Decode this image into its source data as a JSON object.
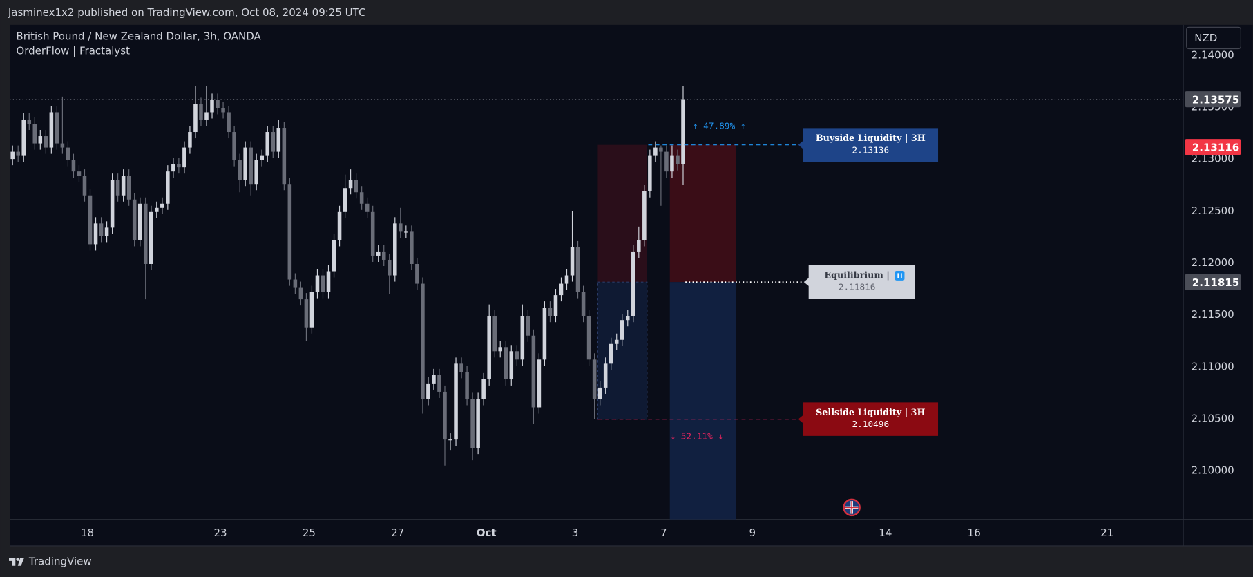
{
  "header": {
    "published": "Jasminex1x2 published on TradingView.com, Oct 08, 2024 09:25 UTC"
  },
  "footer": {
    "brand": "TradingView"
  },
  "chart_data": {
    "type": "candlestick",
    "title": "British Pound / New Zealand Dollar, 3h, OANDA",
    "subtitle": "OrderFlow | Fractalyst",
    "currency": "NZD",
    "up_color": "#d1d4dc",
    "down_color": "#6a6d78",
    "grid": false,
    "xlim": [
      0,
      211.75
    ],
    "xticks": [
      {
        "value": 14,
        "label": "18"
      },
      {
        "value": 38,
        "label": "23"
      },
      {
        "value": 54,
        "label": "25"
      },
      {
        "value": 70,
        "label": "27"
      },
      {
        "value": 86,
        "label": "Oct"
      },
      {
        "value": 102,
        "label": "3"
      },
      {
        "value": 118,
        "label": "7"
      },
      {
        "value": 134,
        "label": "9"
      },
      {
        "value": 158,
        "label": "14"
      },
      {
        "value": 174,
        "label": "16"
      },
      {
        "value": 198,
        "label": "21"
      }
    ],
    "ylim": [
      2.09531,
      2.14292
    ],
    "yticks": [
      {
        "value": 2.14,
        "label": "2.14000"
      },
      {
        "value": 2.135,
        "label": "2.13500"
      },
      {
        "value": 2.13,
        "label": "2.13000"
      },
      {
        "value": 2.125,
        "label": "2.12500"
      },
      {
        "value": 2.12,
        "label": "2.12000"
      },
      {
        "value": 2.115,
        "label": "2.11500"
      },
      {
        "value": 2.11,
        "label": "2.11000"
      },
      {
        "value": 2.105,
        "label": "2.10500"
      },
      {
        "value": 2.1,
        "label": "2.10000"
      }
    ],
    "open": [
      2.13,
      2.1307,
      2.1303,
      2.1338,
      2.1334,
      2.1315,
      2.1322,
      2.1311,
      2.1345,
      2.1315,
      2.1311,
      2.1299,
      2.1288,
      2.1284,
      2.1265,
      2.1218,
      2.1238,
      2.1226,
      2.1234,
      2.128,
      2.1265,
      2.1284,
      2.1261,
      2.1222,
      2.1257,
      2.1199,
      2.1249,
      2.1253,
      2.1257,
      2.1288,
      2.1295,
      2.1292,
      2.1311,
      2.1326,
      2.1353,
      2.1338,
      2.1345,
      2.1357,
      2.1349,
      2.1345,
      2.1326,
      2.1299,
      2.128,
      2.1311,
      2.1276,
      2.1299,
      2.1303,
      2.1326,
      2.1307,
      2.133,
      2.1276,
      2.1184,
      2.1176,
      2.1165,
      2.1138,
      2.1172,
      2.1188,
      2.1172,
      2.1192,
      2.1222,
      2.1249,
      2.1272,
      2.128,
      2.1268,
      2.1257,
      2.1249,
      2.1207,
      2.1211,
      2.1203,
      2.1188,
      2.1238,
      2.123,
      2.123,
      2.1199,
      2.118,
      2.1069,
      2.1084,
      2.1092,
      2.1076,
      2.103,
      2.103,
      2.1103,
      2.1095,
      2.1069,
      2.1022,
      2.1069,
      2.1088,
      2.1149,
      2.1115,
      2.1119,
      2.1088,
      2.1115,
      2.1107,
      2.1149,
      2.113,
      2.1061,
      2.1107,
      2.1157,
      2.1149,
      2.1169,
      2.118,
      2.1188,
      2.1215,
      2.1172,
      2.1149,
      2.1107,
      2.1069,
      2.108,
      2.1103,
      2.1122,
      2.1126,
      2.1145,
      2.1149,
      2.1211,
      2.1222,
      2.1269,
      2.1303,
      2.1311,
      2.1307,
      2.1288,
      2.1303,
      2.1295
    ],
    "high": [
      2.1313,
      2.1313,
      2.1344,
      2.1344,
      2.134,
      2.1328,
      2.1328,
      2.1351,
      2.1351,
      2.136,
      2.1317,
      2.1305,
      2.1294,
      2.129,
      2.1271,
      2.1244,
      2.1244,
      2.124,
      2.1286,
      2.1286,
      2.129,
      2.129,
      2.1267,
      2.1263,
      2.1263,
      2.1255,
      2.1259,
      2.1263,
      2.1294,
      2.1301,
      2.1301,
      2.1317,
      2.1332,
      2.137,
      2.1359,
      2.137,
      2.1363,
      2.1363,
      2.1355,
      2.1351,
      2.1332,
      2.1305,
      2.1317,
      2.1317,
      2.1305,
      2.1309,
      2.1332,
      2.1332,
      2.1338,
      2.1336,
      2.1282,
      2.119,
      2.1182,
      2.1171,
      2.1178,
      2.1194,
      2.1194,
      2.1198,
      2.1228,
      2.1255,
      2.1285,
      2.129,
      2.1286,
      2.1274,
      2.1263,
      2.1255,
      2.1217,
      2.1217,
      2.1209,
      2.1244,
      2.1253,
      2.1236,
      2.1236,
      2.1205,
      2.1186,
      2.109,
      2.1098,
      2.1098,
      2.1082,
      2.1036,
      2.1109,
      2.1109,
      2.1101,
      2.1075,
      2.1075,
      2.1094,
      2.116,
      2.1155,
      2.1125,
      2.1125,
      2.1121,
      2.1121,
      2.116,
      2.1155,
      2.1136,
      2.1113,
      2.1163,
      2.1163,
      2.1175,
      2.1186,
      2.1194,
      2.125,
      2.1221,
      2.1178,
      2.1155,
      2.1113,
      2.1086,
      2.1109,
      2.1128,
      2.1132,
      2.1151,
      2.1155,
      2.1217,
      2.1235,
      2.1275,
      2.1309,
      2.1317,
      2.1313,
      2.1313,
      2.1313,
      2.1309,
      2.137
    ],
    "low": [
      2.1294,
      2.1297,
      2.1297,
      2.1328,
      2.1309,
      2.1309,
      2.1305,
      2.1305,
      2.1309,
      2.1305,
      2.1293,
      2.1282,
      2.1278,
      2.1259,
      2.1212,
      2.1212,
      2.122,
      2.122,
      2.1228,
      2.1259,
      2.1259,
      2.1255,
      2.1216,
      2.1216,
      2.1165,
      2.1193,
      2.1243,
      2.1247,
      2.1251,
      2.1282,
      2.1286,
      2.1286,
      2.1305,
      2.132,
      2.1332,
      2.1332,
      2.1339,
      2.1343,
      2.1339,
      2.132,
      2.1293,
      2.1268,
      2.1274,
      2.1265,
      2.127,
      2.1293,
      2.1297,
      2.1301,
      2.1301,
      2.127,
      2.1178,
      2.117,
      2.1159,
      2.1125,
      2.1132,
      2.1166,
      2.1166,
      2.1166,
      2.1186,
      2.1216,
      2.1243,
      2.1266,
      2.1262,
      2.1251,
      2.1243,
      2.1201,
      2.1201,
      2.1197,
      2.117,
      2.1182,
      2.1224,
      2.1224,
      2.1193,
      2.1174,
      2.1055,
      2.1063,
      2.1078,
      2.107,
      2.1005,
      2.102,
      2.1024,
      2.1089,
      2.1063,
      2.101,
      2.1016,
      2.1063,
      2.1082,
      2.1109,
      2.1109,
      2.1082,
      2.1082,
      2.1101,
      2.1101,
      2.1124,
      2.1045,
      2.1055,
      2.1101,
      2.1143,
      2.1143,
      2.1163,
      2.1174,
      2.1182,
      2.1166,
      2.1143,
      2.1101,
      2.105,
      2.1063,
      2.1074,
      2.1097,
      2.1116,
      2.112,
      2.1139,
      2.1143,
      2.1205,
      2.1216,
      2.1263,
      2.1297,
      2.1255,
      2.1282,
      2.1282,
      2.1289,
      2.1275
    ],
    "close": [
      2.1307,
      2.1303,
      2.1338,
      2.1334,
      2.1315,
      2.1322,
      2.1311,
      2.1345,
      2.1315,
      2.1311,
      2.1299,
      2.1288,
      2.1284,
      2.1265,
      2.1218,
      2.1238,
      2.1226,
      2.1234,
      2.128,
      2.1265,
      2.1284,
      2.1261,
      2.1222,
      2.1257,
      2.1199,
      2.1249,
      2.1253,
      2.1257,
      2.1288,
      2.1295,
      2.1292,
      2.1311,
      2.1326,
      2.1353,
      2.1338,
      2.1345,
      2.1357,
      2.1349,
      2.1345,
      2.1326,
      2.1299,
      2.128,
      2.1311,
      2.1276,
      2.1299,
      2.1303,
      2.1326,
      2.1307,
      2.133,
      2.1276,
      2.1184,
      2.1176,
      2.1165,
      2.1138,
      2.1172,
      2.1188,
      2.1172,
      2.1192,
      2.1222,
      2.1249,
      2.1272,
      2.128,
      2.1268,
      2.1257,
      2.1249,
      2.1207,
      2.1211,
      2.1203,
      2.1188,
      2.1238,
      2.123,
      2.123,
      2.1199,
      2.118,
      2.1069,
      2.1084,
      2.1092,
      2.1076,
      2.103,
      2.103,
      2.1103,
      2.1095,
      2.1069,
      2.1022,
      2.1069,
      2.1088,
      2.1149,
      2.1115,
      2.1119,
      2.1088,
      2.1115,
      2.1107,
      2.1149,
      2.113,
      2.1061,
      2.1107,
      2.1157,
      2.1149,
      2.1169,
      2.118,
      2.1188,
      2.1215,
      2.1172,
      2.1149,
      2.1107,
      2.1069,
      2.108,
      2.1103,
      2.1122,
      2.1126,
      2.1145,
      2.1149,
      2.1211,
      2.1222,
      2.1269,
      2.1303,
      2.1311,
      2.1307,
      2.1288,
      2.1303,
      2.1295,
      2.13575
    ],
    "levels": [
      {
        "label": "Buyside Liquidity | 3H",
        "value": 2.13136,
        "color": "#1e4488",
        "line_color": "#2196f3"
      },
      {
        "label": "Equilibrium |",
        "value": 2.11816,
        "color": "#d1d4dc",
        "line_color": "#ffffff"
      },
      {
        "label": "Sellside Liquidity | 3H",
        "value": 2.10496,
        "color": "#8b0a12",
        "line_color": "#e0245e"
      }
    ],
    "premium_label": "↑ 47.89% ↑",
    "discount_label": "↓ 52.11% ↓",
    "price_labels": [
      {
        "value": 2.13575,
        "color": "#4a4d57",
        "dotted_line": true
      },
      {
        "value": 2.13116,
        "color": "#f23645",
        "dotted_line": false
      },
      {
        "value": 2.11815,
        "color": "#4a4d57",
        "dotted_line": false
      }
    ]
  }
}
